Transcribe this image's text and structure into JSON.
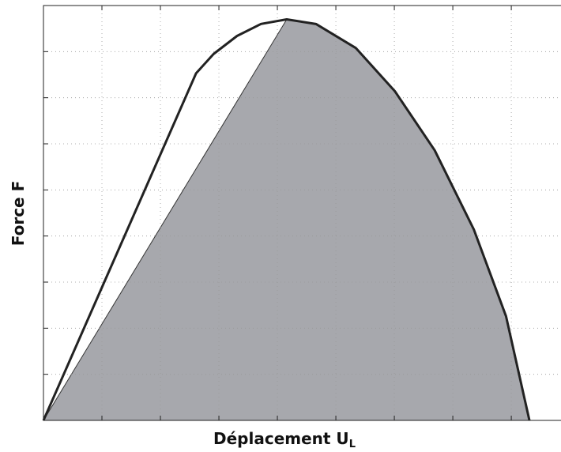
{
  "chart_data": {
    "type": "line",
    "ylabel": "Force F",
    "xlabel": "Déplacement U",
    "xlabel_subscript": "L",
    "xlim": [
      0,
      8.85
    ],
    "ylim": [
      0,
      9
    ],
    "xticks": [
      0,
      1,
      2,
      3,
      4,
      5,
      6,
      7,
      8
    ],
    "yticks": [
      0,
      1,
      2,
      3,
      4,
      5,
      6,
      7,
      8,
      9
    ],
    "grid": true,
    "tick_labels": false,
    "series": [
      {
        "color": "#222222",
        "fill": false,
        "x": [
          0,
          2.61,
          2.91,
          3.31,
          3.72,
          4.16,
          4.66,
          5.34,
          6.01,
          6.69,
          7.36,
          7.91,
          8.31
        ],
        "values": [
          0,
          7.53,
          7.95,
          8.34,
          8.6,
          8.7,
          8.6,
          8.08,
          7.14,
          5.86,
          4.14,
          2.26,
          0
        ]
      },
      {
        "color": "#a7a8ad",
        "fill": true,
        "x": [
          0,
          4.16,
          4.66,
          5.34,
          6.01,
          6.69,
          7.36,
          7.91,
          8.31
        ],
        "values": [
          0,
          8.7,
          8.6,
          8.08,
          7.14,
          5.86,
          4.14,
          2.26,
          0
        ]
      }
    ]
  }
}
